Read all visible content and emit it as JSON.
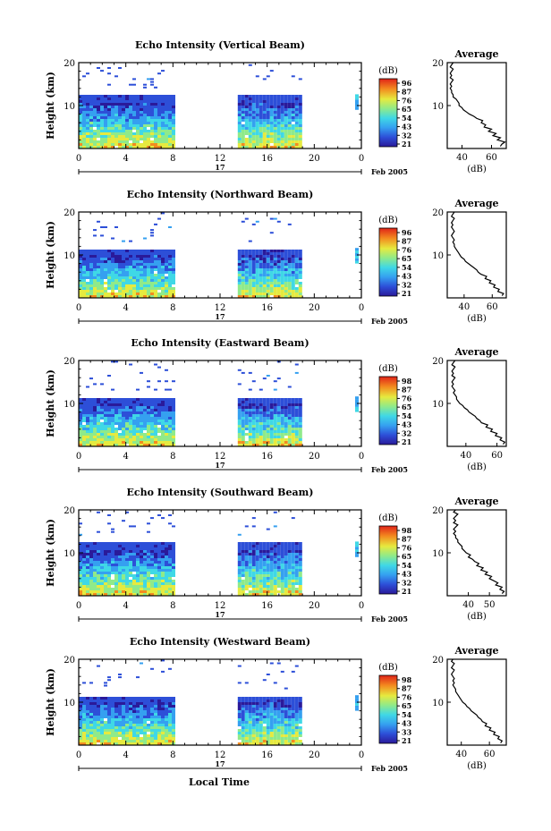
{
  "figure": {
    "xlabel": "Local Time"
  },
  "chart_data": [
    {
      "type": "heatmap",
      "title": "Echo Intensity (Vertical Beam)",
      "ylabel": "Height (km)",
      "x_ticks": [
        "0",
        "4",
        "8",
        "12",
        "16",
        "20",
        "0"
      ],
      "y_ticks": [
        "20",
        "10"
      ],
      "xlim": [
        0,
        24
      ],
      "ylim": [
        0,
        20
      ],
      "date_label": "17",
      "month_label": "Feb 2005",
      "colorbar": {
        "label": "(dB)",
        "ticks": [
          "96",
          "87",
          "76",
          "65",
          "54",
          "43",
          "32",
          "21"
        ]
      },
      "data_blocks_hours": [
        [
          0,
          8
        ],
        [
          13.5,
          19
        ]
      ],
      "echo_top_km": 12,
      "profile": {
        "title": "Average",
        "xlabel": "(dB)",
        "x_ticks": [
          "40",
          "60"
        ],
        "y_ticks": [
          "20",
          "10"
        ],
        "xlim": [
          30,
          70
        ],
        "ylim": [
          0,
          20
        ],
        "height_km": [
          0.5,
          1,
          1.5,
          2,
          2.5,
          3,
          3.5,
          4,
          4.5,
          5,
          5.5,
          6,
          6.5,
          7,
          7.5,
          8,
          8.5,
          9,
          9.5,
          10,
          10.5,
          11,
          11.5,
          12,
          12.5,
          13,
          13.5,
          14,
          14.5,
          15,
          15.5,
          16,
          16.5,
          17,
          17.5,
          18,
          18.5,
          19,
          19.5,
          20
        ],
        "db": [
          66,
          67,
          69,
          64,
          66,
          61,
          63,
          58,
          60,
          55,
          56,
          53,
          54,
          50,
          48,
          45,
          43,
          41,
          40,
          38,
          38,
          37,
          36,
          34,
          34,
          33,
          33,
          32,
          33,
          32,
          33,
          34,
          32,
          33,
          32,
          33,
          34,
          32,
          33,
          34
        ]
      }
    },
    {
      "type": "heatmap",
      "title": "Echo Intensity (Northward Beam)",
      "ylabel": "Height (km)",
      "x_ticks": [
        "0",
        "4",
        "8",
        "12",
        "16",
        "20",
        "0"
      ],
      "y_ticks": [
        "20",
        "10"
      ],
      "xlim": [
        0,
        24
      ],
      "ylim": [
        0,
        20
      ],
      "date_label": "17",
      "month_label": "Feb 2005",
      "colorbar": {
        "label": "(dB)",
        "ticks": [
          "96",
          "87",
          "76",
          "65",
          "54",
          "43",
          "32",
          "21"
        ]
      },
      "data_blocks_hours": [
        [
          0,
          8
        ],
        [
          13.5,
          19
        ]
      ],
      "echo_top_km": 11,
      "profile": {
        "title": "Average",
        "xlabel": "(dB)",
        "x_ticks": [
          "40",
          "60"
        ],
        "y_ticks": [
          "20",
          "10"
        ],
        "xlim": [
          28,
          70
        ],
        "ylim": [
          0,
          20
        ],
        "height_km": [
          0.5,
          1,
          1.5,
          2,
          2.5,
          3,
          3.5,
          4,
          4.5,
          5,
          5.5,
          6,
          6.5,
          7,
          7.5,
          8,
          8.5,
          9,
          9.5,
          10,
          10.5,
          11,
          11.5,
          12,
          12.5,
          13,
          13.5,
          14,
          14.5,
          15,
          15.5,
          16,
          16.5,
          17,
          17.5,
          18,
          18.5,
          19,
          19.5,
          20
        ],
        "db": [
          67,
          68,
          64,
          65,
          61,
          62,
          58,
          59,
          55,
          56,
          52,
          50,
          49,
          47,
          45,
          43,
          41,
          40,
          38,
          37,
          36,
          35,
          34,
          33,
          33,
          32,
          33,
          32,
          31,
          32,
          33,
          32,
          31,
          32,
          31,
          32,
          33,
          31,
          32,
          33
        ]
      }
    },
    {
      "type": "heatmap",
      "title": "Echo Intensity (Eastward Beam)",
      "ylabel": "Height (km)",
      "x_ticks": [
        "0",
        "4",
        "8",
        "12",
        "16",
        "20",
        "0"
      ],
      "y_ticks": [
        "20",
        "10"
      ],
      "xlim": [
        0,
        24
      ],
      "ylim": [
        0,
        20
      ],
      "date_label": "17",
      "month_label": "Feb 2005",
      "colorbar": {
        "label": "(dB)",
        "ticks": [
          "98",
          "87",
          "76",
          "65",
          "54",
          "43",
          "32",
          "21"
        ]
      },
      "data_blocks_hours": [
        [
          0,
          8
        ],
        [
          13.5,
          19
        ]
      ],
      "echo_top_km": 11,
      "profile": {
        "title": "Average",
        "xlabel": "(dB)",
        "x_ticks": [
          "40",
          "60"
        ],
        "y_ticks": [
          "20",
          "10"
        ],
        "xlim": [
          28,
          66
        ],
        "ylim": [
          0,
          20
        ],
        "height_km": [
          0.5,
          1,
          1.5,
          2,
          2.5,
          3,
          3.5,
          4,
          4.5,
          5,
          5.5,
          6,
          6.5,
          7,
          7.5,
          8,
          8.5,
          9,
          9.5,
          10,
          10.5,
          11,
          11.5,
          12,
          12.5,
          13,
          13.5,
          14,
          14.5,
          15,
          15.5,
          16,
          16.5,
          17,
          17.5,
          18,
          18.5,
          19,
          19.5,
          20
        ],
        "db": [
          64,
          65,
          62,
          63,
          59,
          60,
          56,
          57,
          53,
          54,
          50,
          49,
          47,
          46,
          44,
          42,
          41,
          39,
          38,
          36,
          35,
          34,
          34,
          33,
          32,
          33,
          32,
          31,
          32,
          31,
          32,
          33,
          31,
          32,
          31,
          32,
          33,
          31,
          32,
          33
        ]
      }
    },
    {
      "type": "heatmap",
      "title": "Echo Intensity (Southward Beam)",
      "ylabel": "Height (km)",
      "x_ticks": [
        "0",
        "4",
        "8",
        "12",
        "16",
        "20",
        "0"
      ],
      "y_ticks": [
        "20",
        "10"
      ],
      "xlim": [
        0,
        24
      ],
      "ylim": [
        0,
        20
      ],
      "date_label": "17",
      "month_label": "Feb 2005",
      "colorbar": {
        "label": "(dB)",
        "ticks": [
          "98",
          "87",
          "76",
          "65",
          "54",
          "43",
          "32",
          "21"
        ]
      },
      "data_blocks_hours": [
        [
          0,
          8
        ],
        [
          13.5,
          19
        ]
      ],
      "echo_top_km": 12,
      "profile": {
        "title": "Average",
        "xlabel": "(dB)",
        "x_ticks": [
          "40",
          "50"
        ],
        "y_ticks": [
          "20",
          "10"
        ],
        "xlim": [
          30,
          58
        ],
        "ylim": [
          0,
          20
        ],
        "height_km": [
          0.5,
          1,
          1.5,
          2,
          2.5,
          3,
          3.5,
          4,
          4.5,
          5,
          5.5,
          6,
          6.5,
          7,
          7.5,
          8,
          8.5,
          9,
          9.5,
          10,
          10.5,
          11,
          11.5,
          12,
          12.5,
          13,
          13.5,
          14,
          14.5,
          15,
          15.5,
          16,
          16.5,
          17,
          17.5,
          18,
          18.5,
          19,
          19.5,
          20
        ],
        "db": [
          56,
          57,
          55,
          56,
          53,
          54,
          52,
          50,
          51,
          48,
          49,
          46,
          47,
          44,
          45,
          43,
          42,
          40,
          41,
          39,
          38,
          37,
          37,
          36,
          35,
          35,
          34,
          34,
          33,
          34,
          33,
          34,
          35,
          33,
          34,
          33,
          34,
          35,
          33,
          34
        ]
      }
    },
    {
      "type": "heatmap",
      "title": "Echo Intensity (Westward Beam)",
      "ylabel": "Height (km)",
      "x_ticks": [
        "0",
        "4",
        "8",
        "12",
        "16",
        "20",
        "0"
      ],
      "y_ticks": [
        "20",
        "10"
      ],
      "xlim": [
        0,
        24
      ],
      "ylim": [
        0,
        20
      ],
      "date_label": "17",
      "month_label": "Feb 2005",
      "colorbar": {
        "label": "(dB)",
        "ticks": [
          "98",
          "87",
          "76",
          "65",
          "54",
          "43",
          "33",
          "21"
        ]
      },
      "data_blocks_hours": [
        [
          0,
          8
        ],
        [
          13.5,
          19
        ]
      ],
      "echo_top_km": 11,
      "profile": {
        "title": "Average",
        "xlabel": "(dB)",
        "x_ticks": [
          "40",
          "60"
        ],
        "y_ticks": [
          "20",
          "10"
        ],
        "xlim": [
          30,
          72
        ],
        "ylim": [
          0,
          20
        ],
        "height_km": [
          0.5,
          1,
          1.5,
          2,
          2.5,
          3,
          3.5,
          4,
          4.5,
          5,
          5.5,
          6,
          6.5,
          7,
          7.5,
          8,
          8.5,
          9,
          9.5,
          10,
          10.5,
          11,
          11.5,
          12,
          12.5,
          13,
          13.5,
          14,
          14.5,
          15,
          15.5,
          16,
          16.5,
          17,
          17.5,
          18,
          18.5,
          19,
          19.5,
          20
        ],
        "db": [
          68,
          69,
          66,
          67,
          63,
          64,
          60,
          61,
          57,
          58,
          55,
          54,
          52,
          51,
          49,
          47,
          46,
          44,
          43,
          41,
          40,
          39,
          38,
          37,
          36,
          36,
          35,
          34,
          35,
          34,
          35,
          34,
          33,
          34,
          35,
          33,
          34,
          35,
          33,
          34
        ]
      }
    }
  ]
}
